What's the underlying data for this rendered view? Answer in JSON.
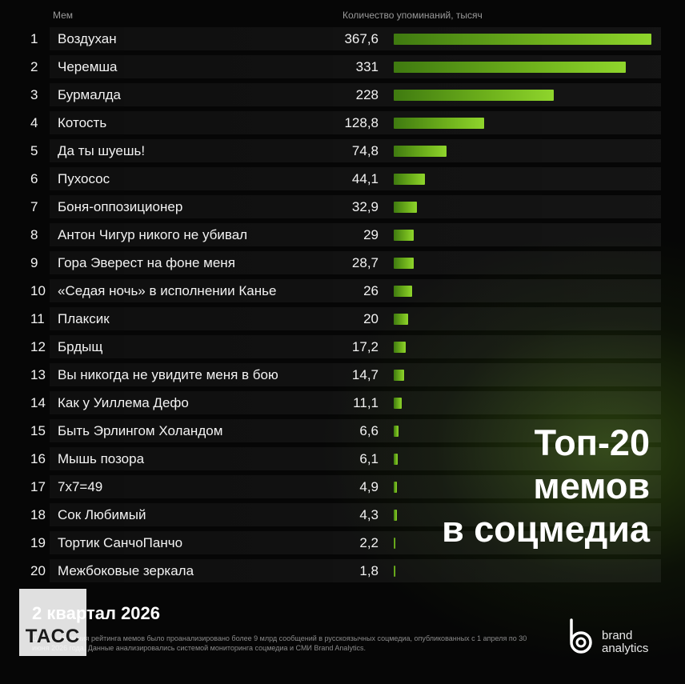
{
  "chart_data": {
    "type": "bar",
    "orientation": "horizontal",
    "column_headers": {
      "meme": "Мем",
      "count": "Количество упоминаний, тысяч"
    },
    "rows": [
      {
        "rank": "1",
        "name": "Воздухан",
        "label": "367,6",
        "value": 367.6
      },
      {
        "rank": "2",
        "name": "Черемша",
        "label": "331",
        "value": 331
      },
      {
        "rank": "3",
        "name": "Бурмалда",
        "label": "228",
        "value": 228
      },
      {
        "rank": "4",
        "name": "Котость",
        "label": "128,8",
        "value": 128.8
      },
      {
        "rank": "5",
        "name": "Да ты шуешь!",
        "label": "74,8",
        "value": 74.8
      },
      {
        "rank": "6",
        "name": "Пухосос",
        "label": "44,1",
        "value": 44.1
      },
      {
        "rank": "7",
        "name": "Боня-оппозиционер",
        "label": "32,9",
        "value": 32.9
      },
      {
        "rank": "8",
        "name": "Антон Чигур никого не убивал",
        "label": "29",
        "value": 29
      },
      {
        "rank": "9",
        "name": "Гора Эверест на фоне меня",
        "label": "28,7",
        "value": 28.7
      },
      {
        "rank": "10",
        "name": "«Седая ночь» в исполнении Канье",
        "label": "26",
        "value": 26
      },
      {
        "rank": "11",
        "name": "Плаксик",
        "label": "20",
        "value": 20
      },
      {
        "rank": "12",
        "name": "Брдыщ",
        "label": "17,2",
        "value": 17.2
      },
      {
        "rank": "13",
        "name": "Вы никогда не увидите меня в бою",
        "label": "14,7",
        "value": 14.7
      },
      {
        "rank": "14",
        "name": "Как у Уиллема Дефо",
        "label": "11,1",
        "value": 11.1
      },
      {
        "rank": "15",
        "name": "Быть Эрлингом Холандом",
        "label": "6,6",
        "value": 6.6
      },
      {
        "rank": "16",
        "name": "Мышь позора",
        "label": "6,1",
        "value": 6.1
      },
      {
        "rank": "17",
        "name": "7x7=49",
        "label": "4,9",
        "value": 4.9
      },
      {
        "rank": "18",
        "name": "Сок Любимый",
        "label": "4,3",
        "value": 4.3
      },
      {
        "rank": "19",
        "name": "Тортик СанчоПанчо",
        "label": "2,2",
        "value": 2.2
      },
      {
        "rank": "20",
        "name": "Межбоковые зеркала",
        "label": "1,8",
        "value": 1.8
      }
    ],
    "xlim": [
      0,
      367.6
    ],
    "bar_color": "#6fb21c",
    "grid": false
  },
  "title": {
    "line1": "Топ-20",
    "line2": "мемов",
    "line3": "в соцмедиа"
  },
  "period": "2 квартал 2026",
  "footnote": "Для составления рейтинга мемов было проанализировано более 9 млрд сообщений в русскоязычных соцмедиа, опубликованных с 1 апреля по 30 июня 2026 года. Данные анализировались системой мониторинга соцмедиа и СМИ Brand Analytics.",
  "tass_logo": "ТАСС",
  "brand": {
    "line1": "brand",
    "line2": "analytics"
  },
  "colors": {
    "background": "#060606",
    "accent": "#6fb21c"
  }
}
